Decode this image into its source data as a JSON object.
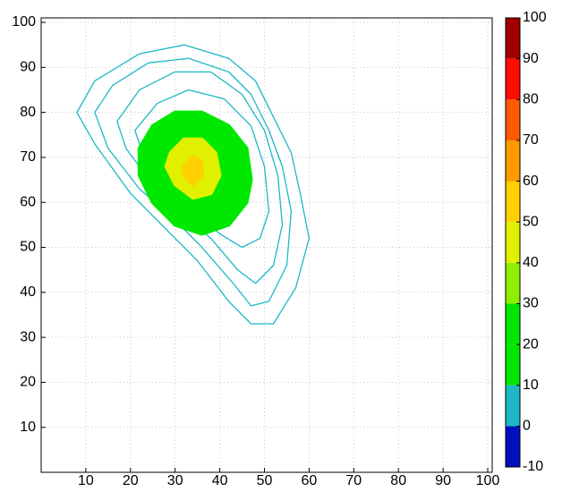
{
  "chart_data": {
    "type": "contour",
    "xlim": [
      0,
      101
    ],
    "ylim": [
      0,
      101
    ],
    "xticks": [
      10,
      20,
      30,
      40,
      50,
      60,
      70,
      80,
      90,
      100
    ],
    "yticks": [
      10,
      20,
      30,
      40,
      50,
      60,
      70,
      80,
      90,
      100
    ],
    "grid": true,
    "contours": [
      {
        "level": 1,
        "filled": false,
        "x": [
          8,
          12,
          22,
          32,
          42,
          48,
          52,
          56,
          58,
          60,
          57,
          52,
          47,
          42,
          35,
          28,
          20,
          12
        ],
        "y": [
          80,
          87,
          93,
          95,
          92,
          87,
          79,
          71,
          62,
          52,
          41,
          33,
          33,
          38,
          47,
          54,
          62,
          73
        ]
      },
      {
        "level": 2,
        "filled": false,
        "x": [
          12,
          16,
          24,
          33,
          42,
          47,
          51,
          54,
          56,
          55,
          51,
          47,
          43,
          36,
          29,
          22,
          15
        ],
        "y": [
          80,
          86,
          91,
          92,
          89,
          84,
          76,
          68,
          58,
          46,
          38,
          37,
          42,
          50,
          57,
          63,
          72
        ]
      },
      {
        "level": 4,
        "filled": false,
        "x": [
          17,
          22,
          30,
          38,
          45,
          50,
          53,
          54,
          52,
          48,
          44,
          38,
          31,
          25,
          19
        ],
        "y": [
          78,
          85,
          89,
          89,
          84,
          76,
          66,
          55,
          46,
          42,
          45,
          52,
          58,
          64,
          72
        ]
      },
      {
        "level": 7,
        "filled": false,
        "x": [
          21,
          26,
          33,
          41,
          47,
          50,
          51,
          49,
          45,
          40,
          34,
          28,
          23
        ],
        "y": [
          76,
          82,
          85,
          83,
          77,
          68,
          58,
          52,
          50,
          53,
          58,
          64,
          70
        ]
      },
      {
        "level": 10,
        "filled": true,
        "x": [
          22,
          25,
          30,
          36,
          42,
          46,
          47,
          46,
          42,
          36,
          30,
          25,
          22
        ],
        "y": [
          72,
          77,
          80,
          80,
          77,
          72,
          65,
          60,
          55,
          53,
          55,
          60,
          66
        ]
      },
      {
        "level": 40,
        "filled": true,
        "x": [
          29,
          32,
          36,
          39,
          40,
          38,
          34,
          30,
          28
        ],
        "y": [
          71,
          74,
          74,
          71,
          66,
          62,
          61,
          64,
          68
        ]
      },
      {
        "level": 50,
        "filled": true,
        "x": [
          32,
          34,
          36,
          36,
          34,
          32
        ],
        "y": [
          68,
          70,
          69,
          66,
          64,
          66
        ]
      }
    ],
    "colorbar": {
      "lim": [
        -10,
        100
      ],
      "ticks": [
        -10,
        0,
        10,
        20,
        30,
        40,
        50,
        60,
        70,
        80,
        90,
        100
      ],
      "colors": [
        "#0010c0",
        "#1cb8c8",
        "#00e800",
        "#00e800",
        "#8ef000",
        "#e0f000",
        "#ffd000",
        "#ff9a00",
        "#ff5a00",
        "#ff0c00",
        "#a00000"
      ]
    }
  }
}
